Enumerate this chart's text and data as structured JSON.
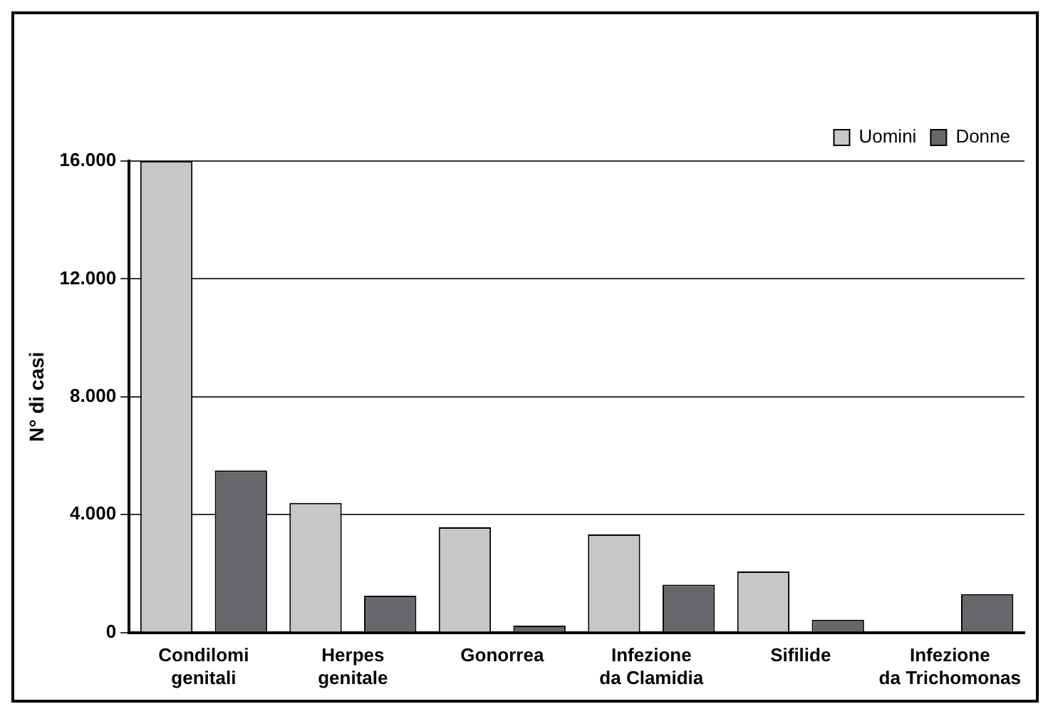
{
  "chart_data": {
    "type": "bar",
    "ylabel": "N° di casi",
    "categories": [
      "Condilomi genitali",
      "Herpes genitale",
      "Gonorrea",
      "Infezione da Clamidia",
      "Sifilide",
      "Infezione da Trichomonas"
    ],
    "series": [
      {
        "name": "Uomini",
        "color": "#c6c7c9",
        "values": [
          16000,
          4400,
          3570,
          3330,
          2070,
          0
        ]
      },
      {
        "name": "Donne",
        "color": "#68676c",
        "values": [
          5500,
          1250,
          235,
          1620,
          430,
          1300
        ]
      }
    ],
    "ylim": [
      0,
      16000
    ],
    "yticks": [
      0,
      {
        "value": 4000,
        "label": "4.000"
      },
      {
        "value": 8000,
        "label": "8.000"
      },
      {
        "value": 12000,
        "label": "12.000"
      },
      {
        "value": 16000,
        "label": "16.000"
      }
    ],
    "grid": "y",
    "legend": "top right"
  }
}
